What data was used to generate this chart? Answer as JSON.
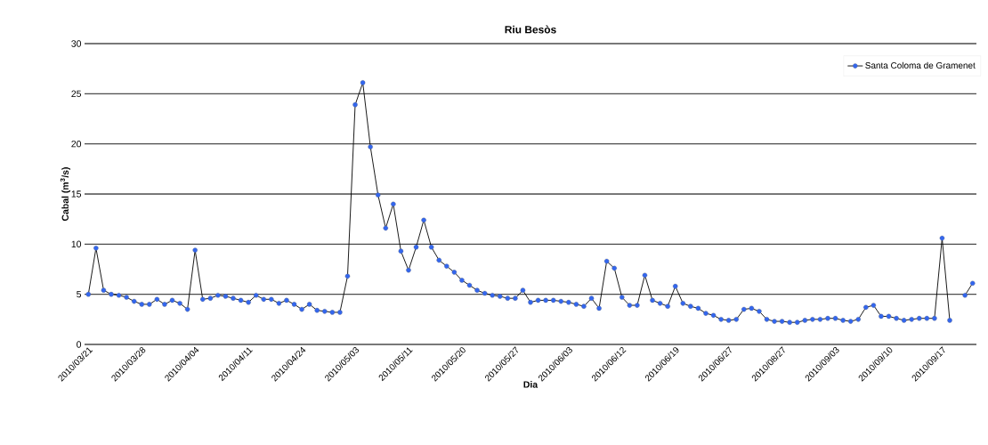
{
  "chart_data": {
    "type": "line",
    "title": "**Riu Besòs**",
    "xlabel": "**Dia**",
    "ylabel": "**Cabal (m$^{3}$/s)**",
    "categories": [
      "2010/03/21",
      null,
      null,
      null,
      null,
      null,
      null,
      "2010/03/28",
      null,
      null,
      null,
      null,
      null,
      null,
      "2010/04/04",
      null,
      null,
      null,
      null,
      null,
      null,
      "2010/04/11",
      null,
      null,
      null,
      null,
      null,
      null,
      "2010/04/24",
      null,
      null,
      null,
      null,
      null,
      null,
      "2010/05/03",
      null,
      null,
      null,
      null,
      null,
      null,
      "2010/05/11",
      null,
      null,
      null,
      null,
      null,
      null,
      "2010/05/20",
      null,
      null,
      null,
      null,
      null,
      null,
      "2010/05/27",
      null,
      null,
      null,
      null,
      null,
      null,
      "2010/06/03",
      null,
      null,
      null,
      null,
      null,
      null,
      "2010/06/12",
      null,
      null,
      null,
      null,
      null,
      null,
      "2010/06/19",
      null,
      null,
      null,
      null,
      null,
      null,
      "2010/06/27",
      null,
      null,
      null,
      null,
      null,
      null,
      "2010/08/27",
      null,
      null,
      null,
      null,
      null,
      null,
      "2010/09/03",
      null,
      null,
      null,
      null,
      null,
      null,
      "2010/09/10",
      null,
      null,
      null,
      null,
      null,
      null,
      "2010/09/17",
      null,
      null,
      null,
      null
    ],
    "series": [
      {
        "name": "Santa Coloma de Gramenet",
        "color": "#3366ee",
        "values": [
          5.0,
          9.6,
          5.4,
          5.0,
          4.9,
          4.7,
          4.3,
          4.0,
          4.0,
          4.5,
          4.0,
          4.4,
          4.1,
          3.5,
          9.4,
          4.5,
          4.6,
          4.9,
          4.8,
          4.6,
          4.4,
          4.2,
          4.9,
          4.5,
          4.5,
          4.1,
          4.4,
          4.0,
          3.5,
          4.0,
          3.4,
          3.3,
          3.2,
          3.2,
          6.8,
          23.9,
          26.1,
          19.7,
          14.9,
          11.6,
          14.0,
          9.3,
          7.4,
          9.7,
          12.4,
          9.7,
          8.4,
          7.8,
          7.2,
          6.4,
          5.9,
          5.4,
          5.1,
          4.9,
          4.8,
          4.6,
          4.6,
          5.4,
          4.2,
          4.4,
          4.4,
          4.4,
          4.3,
          4.2,
          4.0,
          3.8,
          4.6,
          3.6,
          8.3,
          7.6,
          4.7,
          3.9,
          3.9,
          6.9,
          4.4,
          4.1,
          3.8,
          5.8,
          4.1,
          3.8,
          3.6,
          3.1,
          2.9,
          2.5,
          2.4,
          2.5,
          3.5,
          3.6,
          3.3,
          2.5,
          2.3,
          2.3,
          2.2,
          2.2,
          2.4,
          2.5,
          2.5,
          2.6,
          2.6,
          2.4,
          2.3,
          2.5,
          3.7,
          3.9,
          2.8,
          2.8,
          2.6,
          2.4,
          2.5,
          2.6,
          2.6,
          2.6,
          10.6,
          2.4,
          null,
          4.9,
          6.1
        ]
      }
    ],
    "ylim": [
      0,
      30
    ],
    "yticks": [
      0,
      5,
      10,
      15,
      20,
      25,
      30
    ],
    "grid": "y",
    "legend": "top right",
    "marker": "circle",
    "line_style": "solid"
  }
}
